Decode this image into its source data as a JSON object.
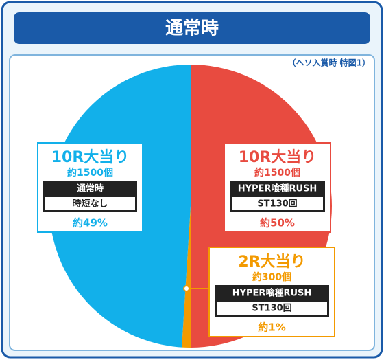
{
  "chart_data": {
    "type": "pie",
    "title": "通常時",
    "subtitle": "（ヘソ入賞時 特図1）",
    "categories": [
      "10R大当り",
      "2R大当り",
      "10R大当り"
    ],
    "counts": [
      "約1500個",
      "約300個",
      "約1500個"
    ],
    "modes": [
      "HYPER喰種RUSH",
      "HYPER喰種RUSH",
      "通常時"
    ],
    "mode_details": [
      "ST130回",
      "ST130回",
      "時短なし"
    ],
    "values": [
      50,
      1,
      49
    ],
    "value_labels": [
      "約50%",
      "約1%",
      "約49%"
    ],
    "colors": [
      "#e84b40",
      "#f39a00",
      "#12b0ea"
    ]
  }
}
